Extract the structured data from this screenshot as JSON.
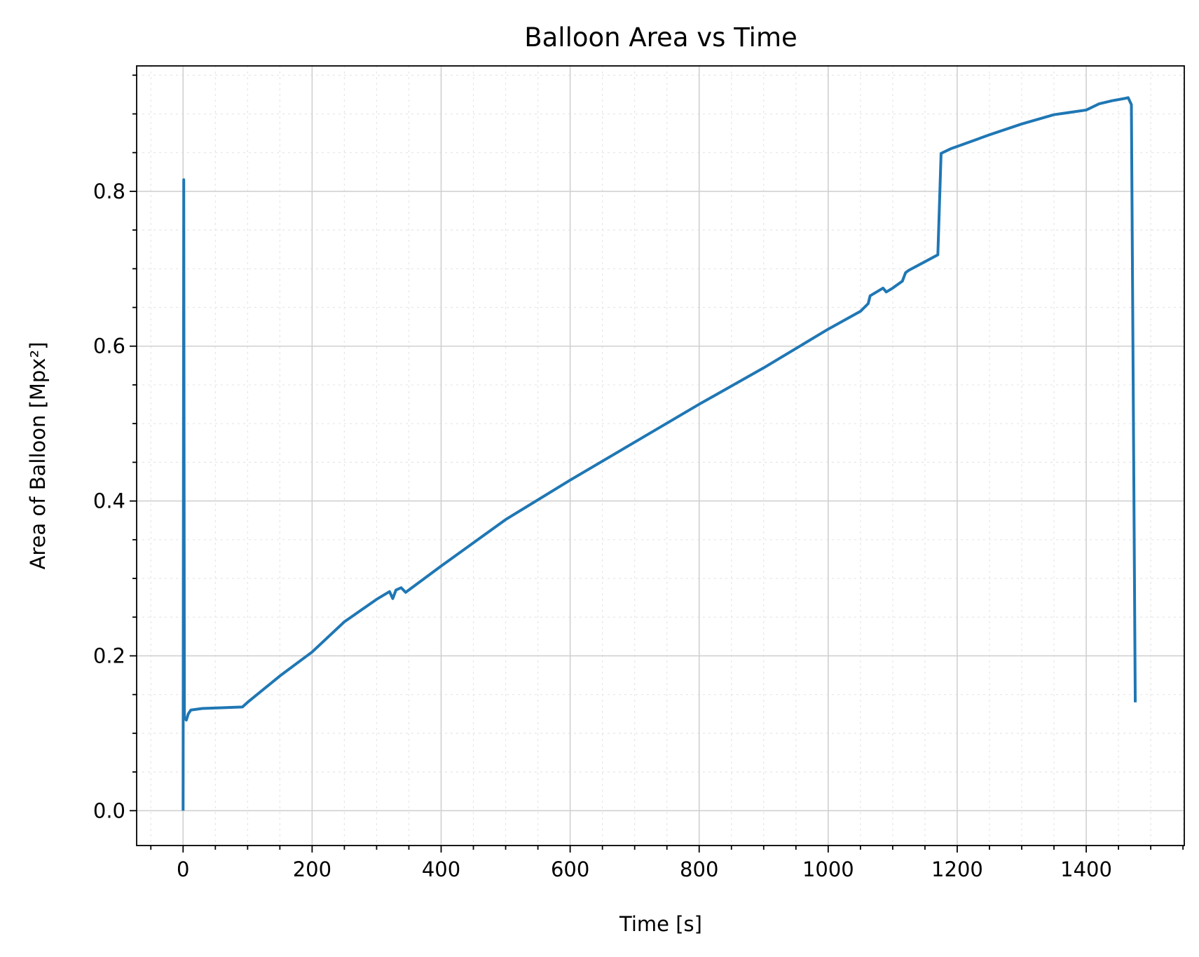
{
  "chart_data": {
    "type": "line",
    "title": "Balloon Area vs Time",
    "xlabel": "Time [s]",
    "ylabel": "Area of Balloon [Mpx²]",
    "xlim": [
      -72,
      1552
    ],
    "ylim": [
      -0.045,
      0.962
    ],
    "x_ticks": [
      0,
      200,
      400,
      600,
      800,
      1000,
      1200,
      1400
    ],
    "x_tick_labels": [
      "0",
      "200",
      "400",
      "600",
      "800",
      "1000",
      "1200",
      "1400"
    ],
    "x_minor_step": 50,
    "y_ticks": [
      0.0,
      0.2,
      0.4,
      0.6,
      0.8
    ],
    "y_tick_labels": [
      "0.0",
      "0.2",
      "0.4",
      "0.6",
      "0.8"
    ],
    "y_minor_step": 0.05,
    "grid": true,
    "legend": "none",
    "colors": {
      "series": "#1f77b4"
    },
    "series": [
      {
        "x": [
          0,
          1,
          2,
          5,
          8,
          12,
          30,
          60,
          92,
          100,
          150,
          200,
          250,
          300,
          320,
          325,
          330,
          338,
          345,
          400,
          500,
          600,
          700,
          800,
          900,
          1000,
          1050,
          1062,
          1065,
          1075,
          1085,
          1090,
          1100,
          1115,
          1120,
          1125,
          1170,
          1175,
          1180,
          1190,
          1200,
          1250,
          1300,
          1350,
          1400,
          1420,
          1440,
          1460,
          1465,
          1470,
          1476
        ],
        "y": [
          0.0,
          0.815,
          0.12,
          0.117,
          0.125,
          0.13,
          0.132,
          0.133,
          0.134,
          0.14,
          0.174,
          0.205,
          0.244,
          0.273,
          0.283,
          0.274,
          0.285,
          0.288,
          0.282,
          0.316,
          0.376,
          0.427,
          0.476,
          0.525,
          0.572,
          0.622,
          0.645,
          0.655,
          0.665,
          0.67,
          0.675,
          0.67,
          0.675,
          0.684,
          0.695,
          0.698,
          0.718,
          0.849,
          0.851,
          0.855,
          0.858,
          0.873,
          0.887,
          0.899,
          0.905,
          0.913,
          0.917,
          0.92,
          0.921,
          0.912,
          0.14
        ]
      }
    ]
  }
}
